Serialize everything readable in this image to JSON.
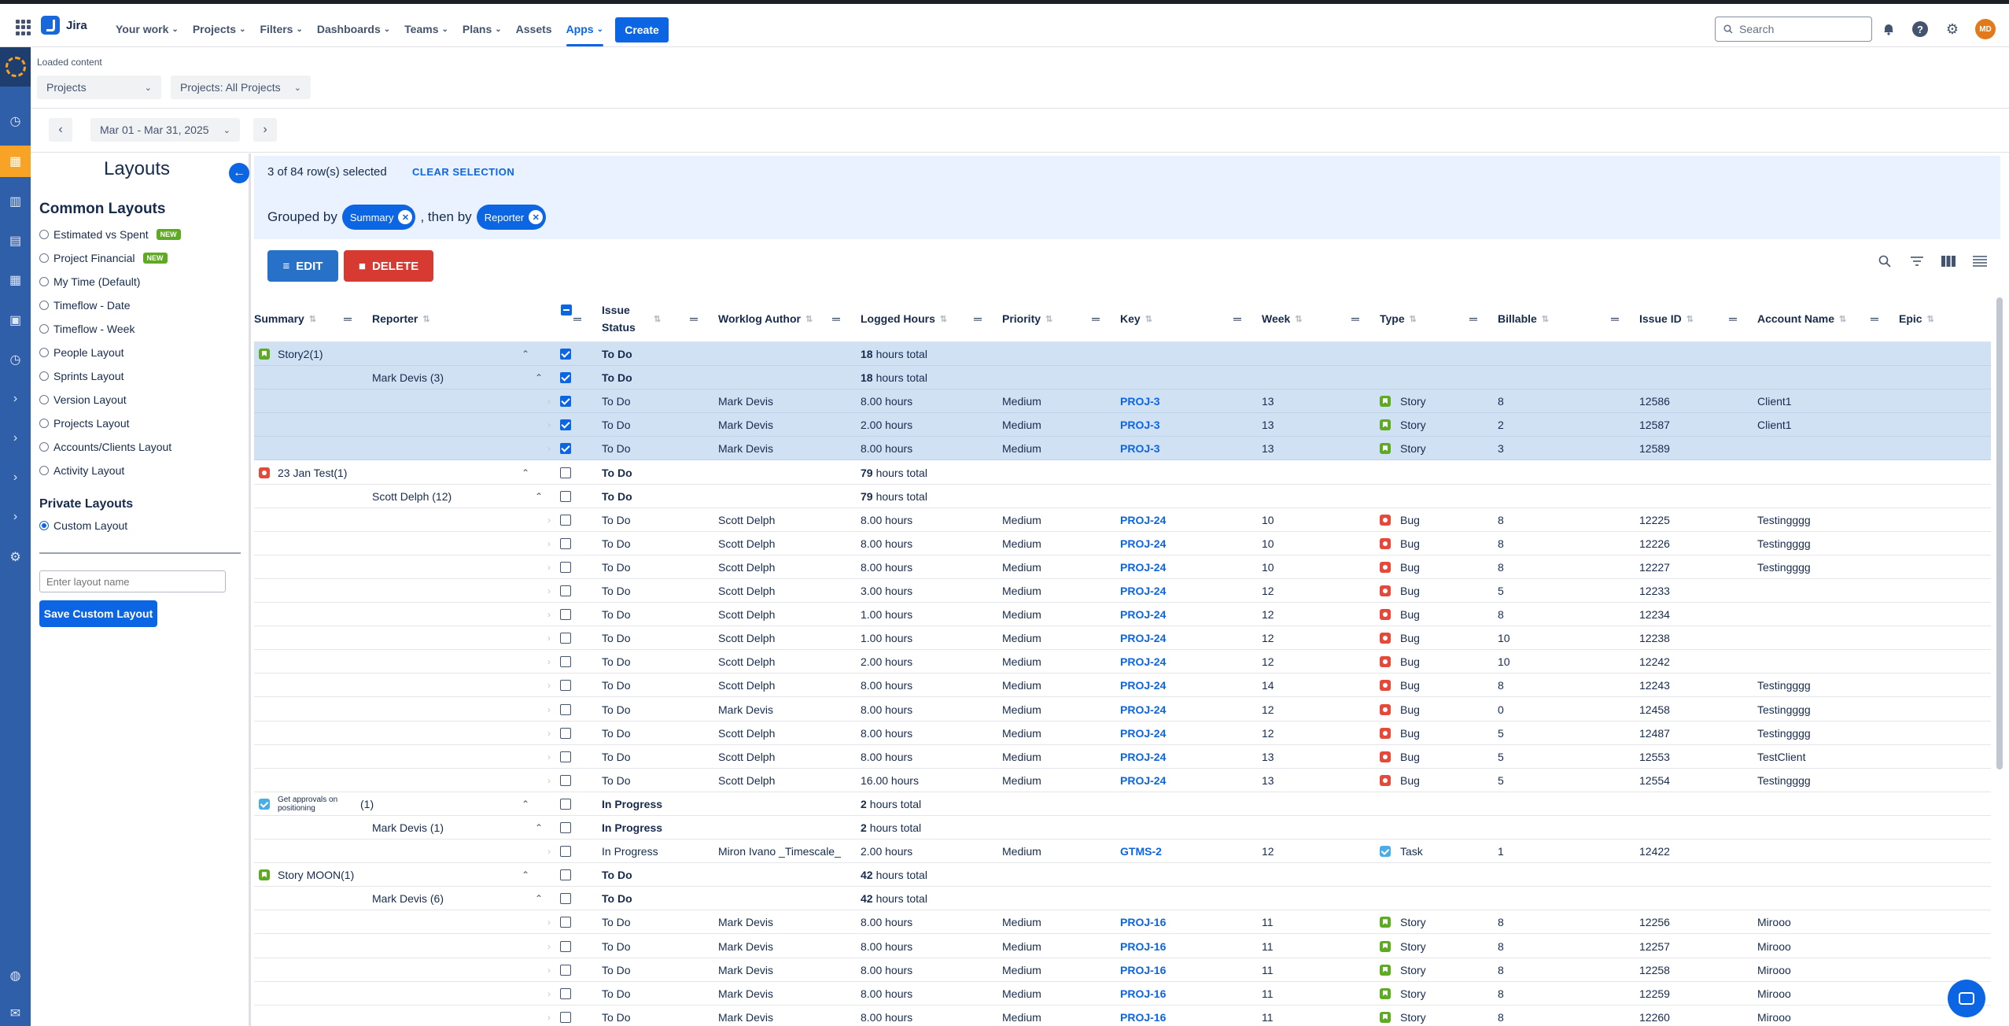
{
  "topnav": {
    "app_name": "Jira",
    "items": [
      {
        "label": "Your work",
        "has_menu": true
      },
      {
        "label": "Projects",
        "has_menu": true
      },
      {
        "label": "Filters",
        "has_menu": true
      },
      {
        "label": "Dashboards",
        "has_menu": true
      },
      {
        "label": "Teams",
        "has_menu": true
      },
      {
        "label": "Plans",
        "has_menu": true
      },
      {
        "label": "Assets",
        "has_menu": false
      },
      {
        "label": "Apps",
        "has_menu": true,
        "active": true
      }
    ],
    "create_label": "Create",
    "search_placeholder": "Search",
    "avatar_initials": "MD"
  },
  "header": {
    "loaded_text": "Loaded content",
    "projects_dropdown": "Projects",
    "projects_filter": "Projects: All Projects",
    "date_range": "Mar 01 - Mar 31, 2025"
  },
  "layouts": {
    "title": "Layouts",
    "common_heading": "Common Layouts",
    "common": [
      {
        "label": "Estimated vs Spent",
        "badge": "NEW"
      },
      {
        "label": "Project Financial",
        "badge": "NEW"
      },
      {
        "label": "My Time (Default)",
        "badge": ""
      },
      {
        "label": "Timeflow - Date",
        "badge": ""
      },
      {
        "label": "Timeflow - Week",
        "badge": ""
      },
      {
        "label": "People Layout",
        "badge": ""
      },
      {
        "label": "Sprints Layout",
        "badge": ""
      },
      {
        "label": "Version Layout",
        "badge": ""
      },
      {
        "label": "Projects Layout",
        "badge": ""
      },
      {
        "label": "Accounts/Clients Layout",
        "badge": ""
      },
      {
        "label": "Activity Layout",
        "badge": ""
      }
    ],
    "private_heading": "Private Layouts",
    "private": [
      {
        "label": "Custom Layout",
        "checked": true
      }
    ],
    "input_placeholder": "Enter layout name",
    "save_label": "Save Custom Layout"
  },
  "selection": {
    "text": "3 of 84 row(s) selected",
    "clear_label": "CLEAR SELECTION",
    "grouped_by_label": "Grouped by",
    "then_by_label": ", then by",
    "group1": "Summary",
    "group2": "Reporter"
  },
  "actions": {
    "edit_label": "EDIT",
    "delete_label": "DELETE"
  },
  "columns": [
    "Summary",
    "Reporter",
    "Issue Status",
    "Worklog Author",
    "Logged Hours",
    "Priority",
    "Key",
    "Week",
    "Type",
    "Billable",
    "Issue ID",
    "Account Name",
    "Epic"
  ],
  "rows": [
    {
      "kind": "group",
      "sel": true,
      "icon": "story",
      "summary": "Story2(1)",
      "status": "To Do",
      "hours": "18",
      "hours_suffix": "hours total",
      "checked": true
    },
    {
      "kind": "sub",
      "sel": true,
      "reporter": "Mark Devis (3)",
      "status": "To Do",
      "hours": "18",
      "hours_suffix": "hours total",
      "checked": true
    },
    {
      "kind": "item",
      "sel": true,
      "checked": true,
      "status": "To Do",
      "author": "Mark Devis",
      "hours": "8.00 hours",
      "priority": "Medium",
      "key": "PROJ-3",
      "week": "13",
      "type": "Story",
      "icon": "story",
      "billable": "8",
      "id": "12586",
      "account": "Client1"
    },
    {
      "kind": "item",
      "sel": true,
      "checked": true,
      "status": "To Do",
      "author": "Mark Devis",
      "hours": "2.00 hours",
      "priority": "Medium",
      "key": "PROJ-3",
      "week": "13",
      "type": "Story",
      "icon": "story",
      "billable": "2",
      "id": "12587",
      "account": "Client1"
    },
    {
      "kind": "item",
      "sel": true,
      "checked": true,
      "status": "To Do",
      "author": "Mark Devis",
      "hours": "8.00 hours",
      "priority": "Medium",
      "key": "PROJ-3",
      "week": "13",
      "type": "Story",
      "icon": "story",
      "billable": "3",
      "id": "12589",
      "account": ""
    },
    {
      "kind": "group",
      "icon": "bug",
      "summary": "23 Jan Test(1)",
      "status": "To Do",
      "hours": "79",
      "hours_suffix": "hours total"
    },
    {
      "kind": "sub",
      "reporter": "Scott Delph (12)",
      "status": "To Do",
      "hours": "79",
      "hours_suffix": "hours total"
    },
    {
      "kind": "item",
      "status": "To Do",
      "author": "Scott Delph",
      "hours": "8.00 hours",
      "priority": "Medium",
      "key": "PROJ-24",
      "week": "10",
      "type": "Bug",
      "icon": "bug",
      "billable": "8",
      "id": "12225",
      "account": "Testingggg"
    },
    {
      "kind": "item",
      "status": "To Do",
      "author": "Scott Delph",
      "hours": "8.00 hours",
      "priority": "Medium",
      "key": "PROJ-24",
      "week": "10",
      "type": "Bug",
      "icon": "bug",
      "billable": "8",
      "id": "12226",
      "account": "Testingggg"
    },
    {
      "kind": "item",
      "status": "To Do",
      "author": "Scott Delph",
      "hours": "8.00 hours",
      "priority": "Medium",
      "key": "PROJ-24",
      "week": "10",
      "type": "Bug",
      "icon": "bug",
      "billable": "8",
      "id": "12227",
      "account": "Testingggg"
    },
    {
      "kind": "item",
      "status": "To Do",
      "author": "Scott Delph",
      "hours": "3.00 hours",
      "priority": "Medium",
      "key": "PROJ-24",
      "week": "12",
      "type": "Bug",
      "icon": "bug",
      "billable": "5",
      "id": "12233",
      "account": ""
    },
    {
      "kind": "item",
      "status": "To Do",
      "author": "Scott Delph",
      "hours": "1.00 hours",
      "priority": "Medium",
      "key": "PROJ-24",
      "week": "12",
      "type": "Bug",
      "icon": "bug",
      "billable": "8",
      "id": "12234",
      "account": ""
    },
    {
      "kind": "item",
      "status": "To Do",
      "author": "Scott Delph",
      "hours": "1.00 hours",
      "priority": "Medium",
      "key": "PROJ-24",
      "week": "12",
      "type": "Bug",
      "icon": "bug",
      "billable": "10",
      "id": "12238",
      "account": ""
    },
    {
      "kind": "item",
      "status": "To Do",
      "author": "Scott Delph",
      "hours": "2.00 hours",
      "priority": "Medium",
      "key": "PROJ-24",
      "week": "12",
      "type": "Bug",
      "icon": "bug",
      "billable": "10",
      "id": "12242",
      "account": ""
    },
    {
      "kind": "item",
      "status": "To Do",
      "author": "Scott Delph",
      "hours": "8.00 hours",
      "priority": "Medium",
      "key": "PROJ-24",
      "week": "14",
      "type": "Bug",
      "icon": "bug",
      "billable": "8",
      "id": "12243",
      "account": "Testingggg"
    },
    {
      "kind": "item",
      "status": "To Do",
      "author": "Mark Devis",
      "hours": "8.00 hours",
      "priority": "Medium",
      "key": "PROJ-24",
      "week": "12",
      "type": "Bug",
      "icon": "bug",
      "billable": "0",
      "id": "12458",
      "account": "Testingggg"
    },
    {
      "kind": "item",
      "status": "To Do",
      "author": "Scott Delph",
      "hours": "8.00 hours",
      "priority": "Medium",
      "key": "PROJ-24",
      "week": "12",
      "type": "Bug",
      "icon": "bug",
      "billable": "5",
      "id": "12487",
      "account": "Testingggg"
    },
    {
      "kind": "item",
      "status": "To Do",
      "author": "Scott Delph",
      "hours": "8.00 hours",
      "priority": "Medium",
      "key": "PROJ-24",
      "week": "13",
      "type": "Bug",
      "icon": "bug",
      "billable": "5",
      "id": "12553",
      "account": "TestClient"
    },
    {
      "kind": "item",
      "status": "To Do",
      "author": "Scott Delph",
      "hours": "16.00 hours",
      "priority": "Medium",
      "key": "PROJ-24",
      "week": "13",
      "type": "Bug",
      "icon": "bug",
      "billable": "5",
      "id": "12554",
      "account": "Testingggg"
    },
    {
      "kind": "group",
      "icon": "task",
      "summary": "Get approvals on positioning",
      "summary_small": true,
      "count": "(1)",
      "status": "In Progress",
      "hours": "2",
      "hours_suffix": "hours total"
    },
    {
      "kind": "sub",
      "reporter": "Mark Devis (1)",
      "status": "In Progress",
      "hours": "2",
      "hours_suffix": "hours total"
    },
    {
      "kind": "item",
      "status": "In Progress",
      "author": "Miron Ivano _Timescale_",
      "hours": "2.00 hours",
      "priority": "Medium",
      "key": "GTMS-2",
      "week": "12",
      "type": "Task",
      "icon": "task",
      "billable": "1",
      "id": "12422",
      "account": ""
    },
    {
      "kind": "group",
      "icon": "story",
      "summary": "Story MOON(1)",
      "status": "To Do",
      "hours": "42",
      "hours_suffix": "hours total"
    },
    {
      "kind": "sub",
      "reporter": "Mark Devis (6)",
      "status": "To Do",
      "hours": "42",
      "hours_suffix": "hours total"
    },
    {
      "kind": "item",
      "status": "To Do",
      "author": "Mark Devis",
      "hours": "8.00 hours",
      "priority": "Medium",
      "key": "PROJ-16",
      "week": "11",
      "type": "Story",
      "icon": "story",
      "billable": "8",
      "id": "12256",
      "account": "Mirooo"
    },
    {
      "kind": "item",
      "status": "To Do",
      "author": "Mark Devis",
      "hours": "8.00 hours",
      "priority": "Medium",
      "key": "PROJ-16",
      "week": "11",
      "type": "Story",
      "icon": "story",
      "billable": "8",
      "id": "12257",
      "account": "Mirooo"
    },
    {
      "kind": "item",
      "status": "To Do",
      "author": "Mark Devis",
      "hours": "8.00 hours",
      "priority": "Medium",
      "key": "PROJ-16",
      "week": "11",
      "type": "Story",
      "icon": "story",
      "billable": "8",
      "id": "12258",
      "account": "Mirooo"
    },
    {
      "kind": "item",
      "status": "To Do",
      "author": "Mark Devis",
      "hours": "8.00 hours",
      "priority": "Medium",
      "key": "PROJ-16",
      "week": "11",
      "type": "Story",
      "icon": "story",
      "billable": "8",
      "id": "12259",
      "account": "Mirooo"
    },
    {
      "kind": "item",
      "status": "To Do",
      "author": "Mark Devis",
      "hours": "8.00 hours",
      "priority": "Medium",
      "key": "PROJ-16",
      "week": "11",
      "type": "Story",
      "icon": "story",
      "billable": "8",
      "id": "12260",
      "account": "Mirooo"
    }
  ],
  "colors": {
    "accent": "#0c66e4",
    "story": "#5eaa22",
    "bug": "#e5493a",
    "task": "#4bade8",
    "selected_row": "#cfe1f3",
    "banner": "#e9f2fe",
    "sidebar": "#2f5fa8",
    "sidebar_active": "#f7a325"
  }
}
